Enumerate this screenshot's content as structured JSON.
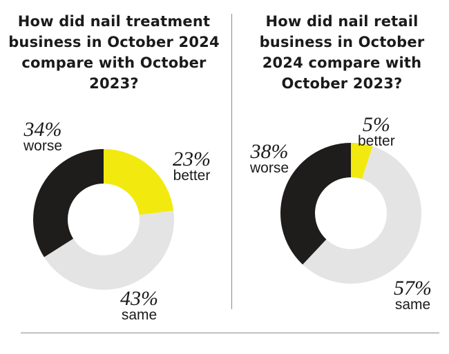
{
  "colors": {
    "better": "#f2ea0f",
    "same": "#e4e4e4",
    "worse": "#1f1c1c"
  },
  "chart_data": [
    {
      "type": "pie",
      "variant": "donut",
      "title": "How did nail treatment business in October 2024 compare with October 2023?",
      "slices": [
        {
          "key": "better",
          "label": "better",
          "value": 23,
          "value_label": "23%"
        },
        {
          "key": "same",
          "label": "same",
          "value": 43,
          "value_label": "43%"
        },
        {
          "key": "worse",
          "label": "worse",
          "value": 34,
          "value_label": "34%"
        }
      ]
    },
    {
      "type": "pie",
      "variant": "donut",
      "title": "How did nail retail business in October 2024 compare with October 2023?",
      "slices": [
        {
          "key": "better",
          "label": "better",
          "value": 5,
          "value_label": "5%"
        },
        {
          "key": "same",
          "label": "same",
          "value": 57,
          "value_label": "57%"
        },
        {
          "key": "worse",
          "label": "worse",
          "value": 38,
          "value_label": "38%"
        }
      ]
    }
  ]
}
